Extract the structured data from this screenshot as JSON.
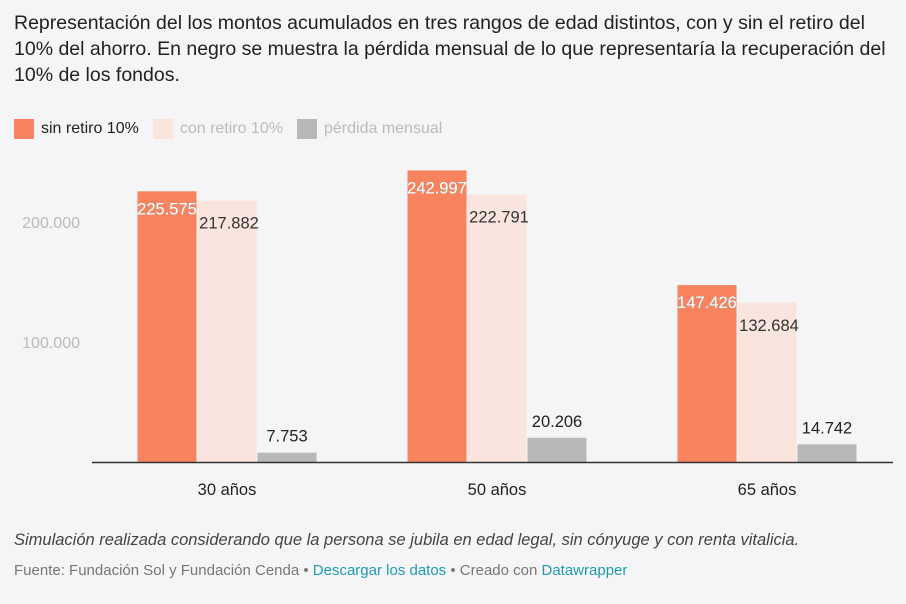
{
  "title": "Representación del los montos acumulados en tres rangos de edad distintos, con y sin el retiro del 10% del ahorro. En negro se muestra la pérdida mensual de lo que representaría la recuperación del 10% de los fondos.",
  "chart_data": {
    "type": "bar",
    "categories": [
      "30 años",
      "50 años",
      "65 años"
    ],
    "series": [
      {
        "name": "sin retiro 10%",
        "values": [
          225575,
          242997,
          147426
        ],
        "labels": [
          "225.575",
          "242.997",
          "147.426"
        ],
        "color": "#f7845f"
      },
      {
        "name": "con retiro 10%",
        "values": [
          217882,
          222791,
          132684
        ],
        "labels": [
          "217.882",
          "222.791",
          "132.684"
        ],
        "color": "#f9e5dd"
      },
      {
        "name": "pérdida mensual",
        "values": [
          7753,
          20206,
          14742
        ],
        "labels": [
          "7.753",
          "20.206",
          "14.742"
        ],
        "color": "#b8b8b8"
      }
    ],
    "yticks": [
      {
        "value": 100000,
        "label": "100.000"
      },
      {
        "value": 200000,
        "label": "200.000"
      }
    ],
    "ylim": [
      0,
      245000
    ],
    "legend_position": "top-left",
    "grid": false
  },
  "note": "Simulación realizada considerando que la persona se jubila en edad legal, sin cónyuge y con renta vitalicia.",
  "source": {
    "prefix": "Fuente: Fundación Sol y Fundación Cenda • ",
    "download_link": "Descargar los datos",
    "middle": " • Creado con ",
    "datawrapper_link": "Datawrapper"
  }
}
